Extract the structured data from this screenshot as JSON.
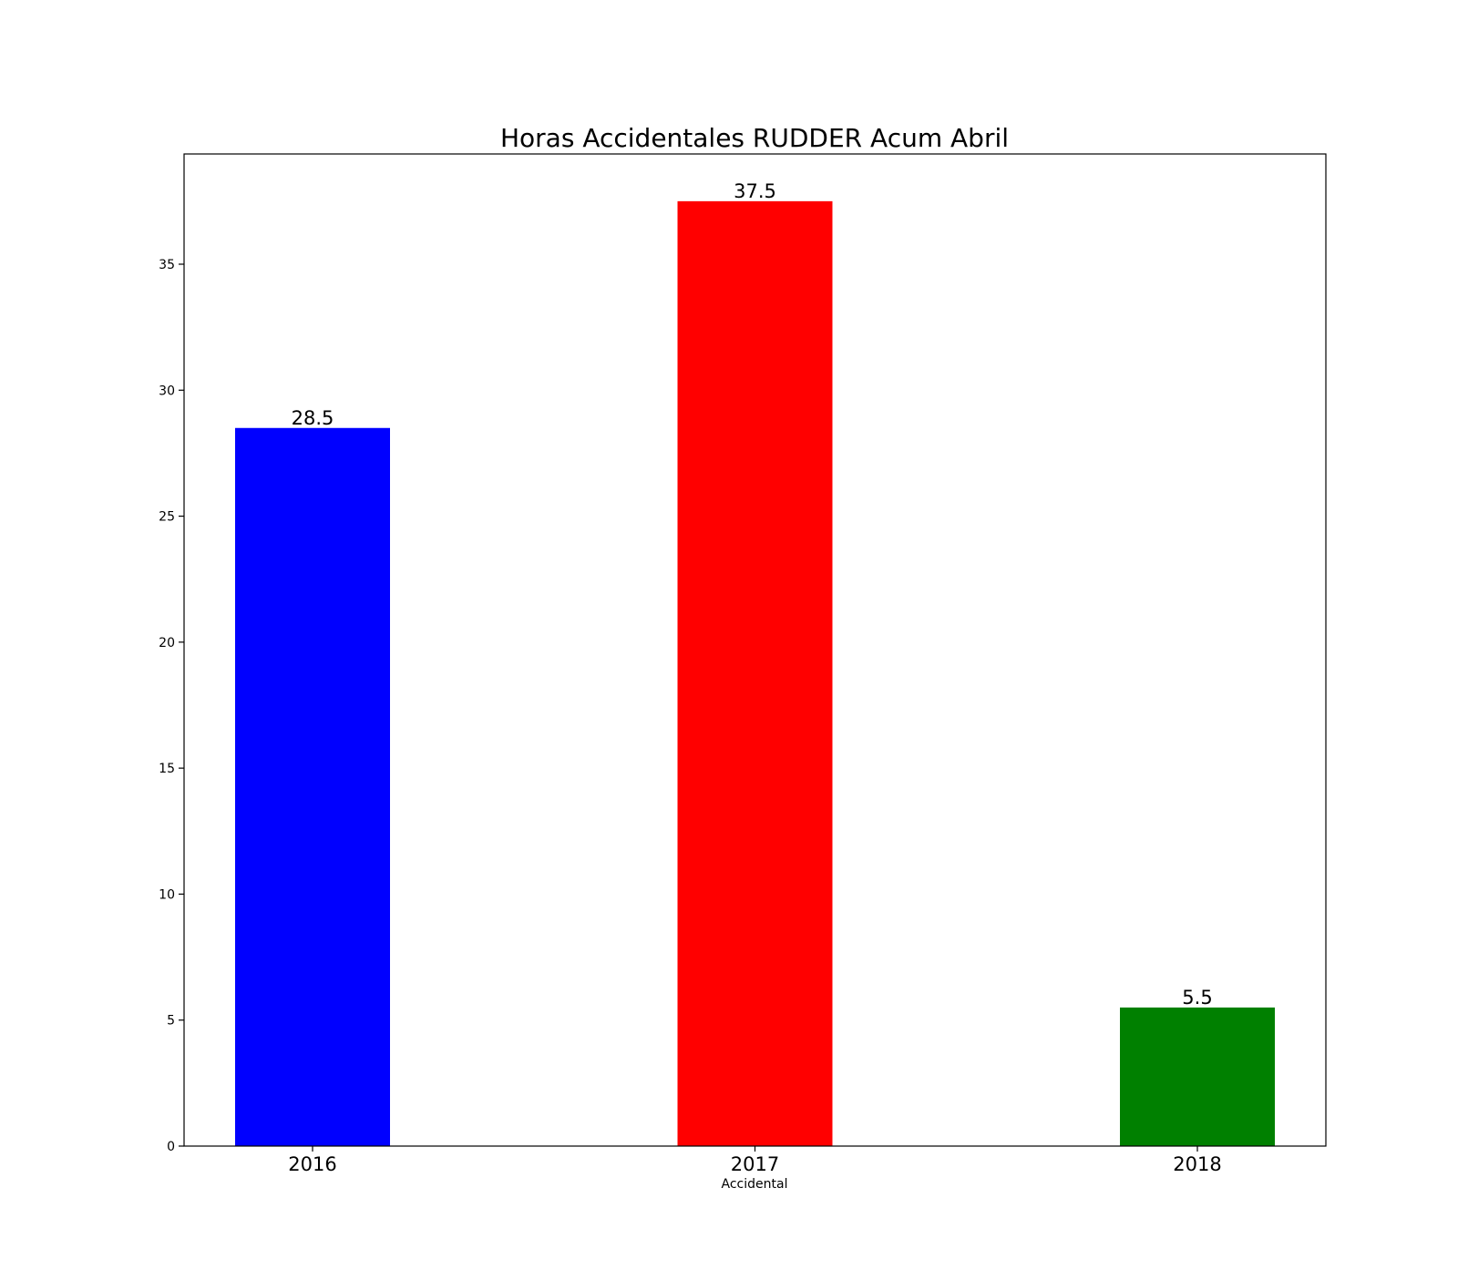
{
  "chart_data": {
    "type": "bar",
    "title": "Horas Accidentales RUDDER Acum Abril",
    "xlabel": "Accidental",
    "ylabel": "",
    "categories": [
      "2016",
      "2017",
      "2018"
    ],
    "values": [
      28.5,
      37.5,
      5.5
    ],
    "value_labels": [
      "28.5",
      "37.5",
      "5.5"
    ],
    "bar_colors": [
      "#0000ff",
      "#ff0000",
      "#008000"
    ],
    "ylim": [
      0,
      39.375
    ],
    "yticks": [
      0,
      5,
      10,
      15,
      20,
      25,
      30,
      35
    ],
    "ytick_labels": [
      "0",
      "5",
      "10",
      "15",
      "20",
      "25",
      "30",
      "35"
    ],
    "grid": false,
    "legend": null
  }
}
